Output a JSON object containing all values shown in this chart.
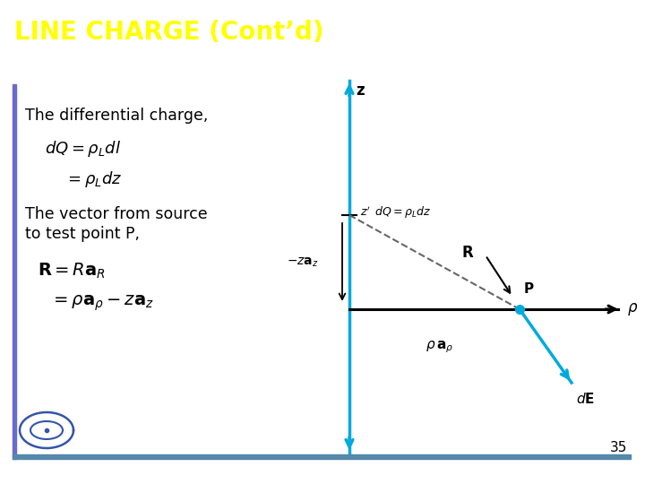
{
  "title": "LINE CHARGE (Cont’d)",
  "title_bg": "#6b6bcc",
  "title_fg": "#ffff00",
  "slide_bg": "#ffffff",
  "text1": "The differential charge,",
  "eq1a": "$dQ = \\rho_L dl$",
  "eq1b": "$= \\rho_L dz$",
  "text2": "The vector from source\nto test point P,",
  "eq2a": "$\\mathbf{R} = R\\mathbf{a}_R$",
  "eq2b": "$= \\rho\\mathbf{a}_{\\rho} - z\\mathbf{a}_z$",
  "diagram": {
    "z_line_color": "#00aadd",
    "dE_color": "#00aadd",
    "dashed_color": "#666666",
    "neg_za_label": "$-z\\mathbf{a}_z$",
    "rho_a_label": "$\\rho\\,\\mathbf{a}_{\\rho}$",
    "R_label": "$\\mathbf{R}$",
    "P_label": "P",
    "z_label": "z",
    "rho_axis_label": "$\\rho$",
    "dE_label": "$d\\mathbf{E}$"
  },
  "page_number": "35",
  "left_border_color": "#6b6bcc",
  "bottom_border_color": "#5588aa"
}
